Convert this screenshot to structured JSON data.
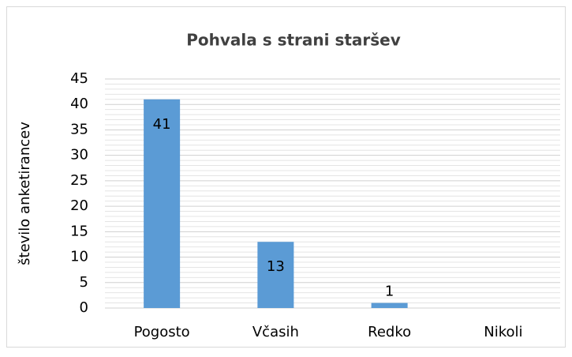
{
  "chart_data": {
    "type": "bar",
    "title": "Pohvala s strani staršev",
    "y_label": "število anketirancev",
    "categories": [
      "Pogosto",
      "Včasih",
      "Redko",
      "Nikoli"
    ],
    "values": [
      41,
      13,
      1,
      0
    ],
    "color": "#5b9bd5",
    "ylim": [
      0,
      45
    ],
    "yticks": [
      0,
      5,
      10,
      15,
      20,
      25,
      30,
      35,
      40,
      45
    ],
    "grid": true,
    "minor_grid": true
  }
}
